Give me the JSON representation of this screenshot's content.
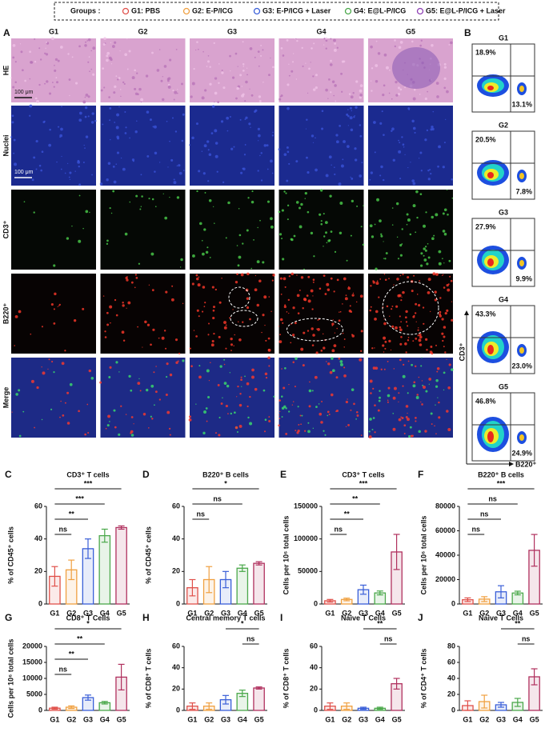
{
  "legend": {
    "title": "Groups :",
    "items": [
      {
        "label": "G1: PBS",
        "color": "#e0504a"
      },
      {
        "label": "G2: E-P/ICG",
        "color": "#f0a040"
      },
      {
        "label": "G3: E-P/ICG + Laser",
        "color": "#3a5fd8"
      },
      {
        "label": "G4: E@L-P/ICG",
        "color": "#4aa84a"
      },
      {
        "label": "G5: E@L-P/ICG + Laser",
        "color": "#8e3fb5"
      }
    ]
  },
  "panel_a": {
    "letter": "A",
    "columns": [
      "G1",
      "G2",
      "G3",
      "G4",
      "G5"
    ],
    "rows": [
      "HE",
      "Nuclei",
      "CD3⁺",
      "B220⁺",
      "Merge"
    ],
    "scale_bars": [
      "100 μm",
      "100 μm"
    ]
  },
  "panel_b": {
    "letter": "B",
    "y_label": "CD3⁺",
    "x_label": "B220⁺",
    "plots": [
      {
        "group": "G1",
        "upper_left": "18.9%",
        "lower_right": "13.1%"
      },
      {
        "group": "G2",
        "upper_left": "20.5%",
        "lower_right": "7.8%"
      },
      {
        "group": "G3",
        "upper_left": "27.9%",
        "lower_right": "9.9%"
      },
      {
        "group": "G4",
        "upper_left": "43.3%",
        "lower_right": "23.0%"
      },
      {
        "group": "G5",
        "upper_left": "46.8%",
        "lower_right": "24.9%"
      }
    ]
  },
  "chart_data": [
    {
      "type": "bar",
      "panel": "C",
      "title": "CD3⁺ T cells",
      "y_label": "% of CD45⁺ cells",
      "categories": [
        "G1",
        "G2",
        "G3",
        "G4",
        "G5"
      ],
      "values": [
        17,
        21,
        34,
        42,
        47
      ],
      "errors": [
        6,
        6,
        6,
        4,
        1
      ],
      "colors": [
        "#e0504a",
        "#f0a040",
        "#3a5fd8",
        "#4aa84a",
        "#b0305e"
      ],
      "ylim": [
        0,
        60
      ],
      "yticks": [
        0,
        20,
        40,
        60
      ],
      "significance": [
        {
          "label": "ns",
          "groups": [
            "G1",
            "G2"
          ]
        },
        {
          "label": "**",
          "groups": [
            "G1",
            "G3"
          ]
        },
        {
          "label": "***",
          "groups": [
            "G1",
            "G4"
          ]
        },
        {
          "label": "***",
          "groups": [
            "G1",
            "G5"
          ]
        }
      ]
    },
    {
      "type": "bar",
      "panel": "D",
      "title": "B220⁺ B cells",
      "y_label": "% of CD45⁺ cells",
      "categories": [
        "G1",
        "G2",
        "G3",
        "G4",
        "G5"
      ],
      "values": [
        10,
        15,
        15,
        22,
        25
      ],
      "errors": [
        5,
        8,
        5,
        2,
        1
      ],
      "colors": [
        "#e0504a",
        "#f0a040",
        "#3a5fd8",
        "#4aa84a",
        "#b0305e"
      ],
      "ylim": [
        0,
        60
      ],
      "yticks": [
        0,
        20,
        40,
        60
      ],
      "significance": [
        {
          "label": "ns",
          "groups": [
            "G1",
            "G2"
          ]
        },
        {
          "label": "ns",
          "groups": [
            "G1",
            "G4"
          ]
        },
        {
          "label": "*",
          "groups": [
            "G1",
            "G5"
          ]
        }
      ]
    },
    {
      "type": "bar",
      "panel": "E",
      "title": "CD3⁺ T cells",
      "y_label": "Cells per 10⁶ total cells",
      "categories": [
        "G1",
        "G2",
        "G3",
        "G4",
        "G5"
      ],
      "values": [
        5000,
        7000,
        22000,
        17000,
        80000
      ],
      "errors": [
        2000,
        2000,
        7000,
        3000,
        27000
      ],
      "colors": [
        "#e0504a",
        "#f0a040",
        "#3a5fd8",
        "#4aa84a",
        "#b0305e"
      ],
      "ylim": [
        0,
        150000
      ],
      "yticks": [
        0,
        50000,
        100000,
        150000
      ],
      "significance": [
        {
          "label": "ns",
          "groups": [
            "G1",
            "G2"
          ]
        },
        {
          "label": "**",
          "groups": [
            "G1",
            "G3"
          ]
        },
        {
          "label": "**",
          "groups": [
            "G1",
            "G4"
          ]
        },
        {
          "label": "***",
          "groups": [
            "G1",
            "G5"
          ]
        }
      ]
    },
    {
      "type": "bar",
      "panel": "F",
      "title": "B220⁺ B cells",
      "y_label": "Cells per 10⁶ total cells",
      "categories": [
        "G1",
        "G2",
        "G3",
        "G4",
        "G5"
      ],
      "values": [
        3500,
        4000,
        10000,
        9000,
        44000
      ],
      "errors": [
        1500,
        2000,
        5000,
        1500,
        13000
      ],
      "colors": [
        "#e0504a",
        "#f0a040",
        "#3a5fd8",
        "#4aa84a",
        "#b0305e"
      ],
      "ylim": [
        0,
        80000
      ],
      "yticks": [
        0,
        20000,
        40000,
        60000,
        80000
      ],
      "significance": [
        {
          "label": "ns",
          "groups": [
            "G1",
            "G2"
          ]
        },
        {
          "label": "ns",
          "groups": [
            "G1",
            "G3"
          ]
        },
        {
          "label": "ns",
          "groups": [
            "G1",
            "G4"
          ]
        },
        {
          "label": "***",
          "groups": [
            "G1",
            "G5"
          ]
        }
      ]
    },
    {
      "type": "bar",
      "panel": "G",
      "title": "CD8⁺ T Cells",
      "y_label": "Cells per 10⁶ total cells",
      "categories": [
        "G1",
        "G2",
        "G3",
        "G4",
        "G5"
      ],
      "values": [
        700,
        1000,
        4000,
        2400,
        10400
      ],
      "errors": [
        300,
        400,
        800,
        400,
        4000
      ],
      "colors": [
        "#e0504a",
        "#f0a040",
        "#3a5fd8",
        "#4aa84a",
        "#b0305e"
      ],
      "ylim": [
        0,
        20000
      ],
      "yticks": [
        0,
        5000,
        10000,
        15000,
        20000
      ],
      "significance": [
        {
          "label": "ns",
          "groups": [
            "G1",
            "G2"
          ]
        },
        {
          "label": "**",
          "groups": [
            "G1",
            "G3"
          ]
        },
        {
          "label": "**",
          "groups": [
            "G1",
            "G4"
          ]
        },
        {
          "label": "*",
          "groups": [
            "G1",
            "G5"
          ]
        }
      ]
    },
    {
      "type": "bar",
      "panel": "H",
      "title": "Central memory T cells",
      "y_label": "% of CD8⁺ T cells",
      "categories": [
        "G1",
        "G2",
        "G3",
        "G4",
        "G5"
      ],
      "values": [
        4,
        4,
        10,
        16,
        21
      ],
      "errors": [
        3,
        3,
        4,
        3,
        1
      ],
      "colors": [
        "#e0504a",
        "#f0a040",
        "#3a5fd8",
        "#4aa84a",
        "#b0305e"
      ],
      "ylim": [
        0,
        60
      ],
      "yticks": [
        0,
        20,
        40,
        60
      ],
      "significance": [
        {
          "label": "ns",
          "groups": [
            "G4",
            "G5"
          ]
        },
        {
          "label": "*",
          "groups": [
            "G3",
            "G5"
          ]
        }
      ]
    },
    {
      "type": "bar",
      "panel": "I",
      "title": "Naive T Cells",
      "y_label": "% of CD8⁺ T cells",
      "categories": [
        "G1",
        "G2",
        "G3",
        "G4",
        "G5"
      ],
      "values": [
        4,
        4,
        2,
        2,
        25
      ],
      "errors": [
        3,
        3,
        1,
        1,
        5
      ],
      "colors": [
        "#e0504a",
        "#f0a040",
        "#3a5fd8",
        "#4aa84a",
        "#b0305e"
      ],
      "ylim": [
        0,
        60
      ],
      "yticks": [
        0,
        20,
        40,
        60
      ],
      "significance": [
        {
          "label": "ns",
          "groups": [
            "G4",
            "G5"
          ]
        },
        {
          "label": "**",
          "groups": [
            "G3",
            "G5"
          ]
        }
      ]
    },
    {
      "type": "bar",
      "panel": "J",
      "title": "Naive T Cells",
      "y_label": "% of CD4⁺ T cells",
      "categories": [
        "G1",
        "G2",
        "G3",
        "G4",
        "G5"
      ],
      "values": [
        6,
        11,
        7,
        10,
        42
      ],
      "errors": [
        6,
        8,
        3,
        5,
        10
      ],
      "colors": [
        "#e0504a",
        "#f0a040",
        "#3a5fd8",
        "#4aa84a",
        "#b0305e"
      ],
      "ylim": [
        0,
        80
      ],
      "yticks": [
        0,
        20,
        40,
        60,
        80
      ],
      "significance": [
        {
          "label": "ns",
          "groups": [
            "G4",
            "G5"
          ]
        },
        {
          "label": "**",
          "groups": [
            "G3",
            "G5"
          ]
        }
      ]
    }
  ]
}
